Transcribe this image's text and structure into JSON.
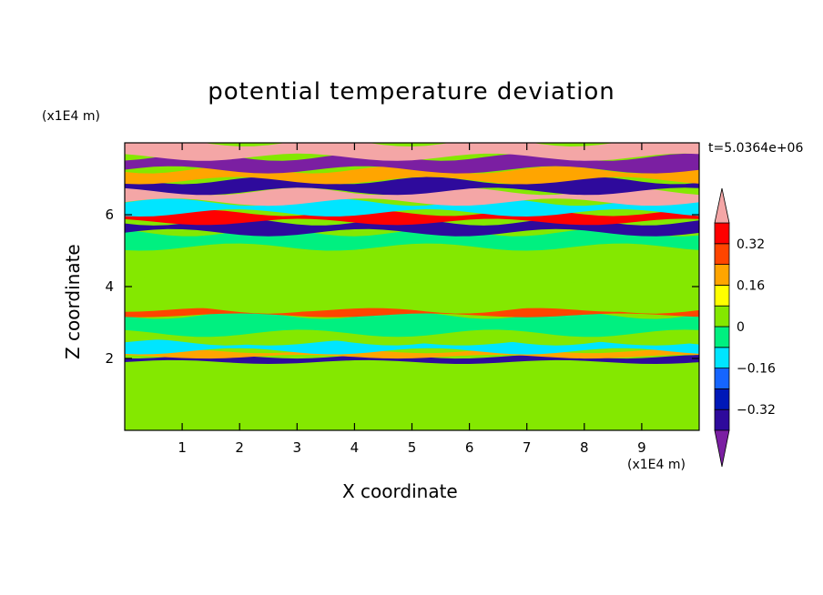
{
  "chart_data": {
    "type": "heatmap",
    "title": "potential temperature deviation",
    "xlabel": "X coordinate",
    "ylabel": "Z coordinate",
    "x_unit": "(x1E4 m)",
    "y_unit": "(x1E4 m)",
    "time_label": "t=5.0364e+06",
    "xlim": [
      0,
      10
    ],
    "ylim": [
      0,
      8
    ],
    "x_ticks": [
      1,
      2,
      3,
      4,
      5,
      6,
      7,
      8,
      9
    ],
    "y_ticks": [
      2,
      4,
      6
    ],
    "x_tick_labels": [
      "1",
      "2",
      "3",
      "4",
      "5",
      "6",
      "7",
      "8",
      "9"
    ],
    "y_tick_labels": [
      "2",
      "4",
      "6"
    ],
    "colorbar": {
      "levels": [
        -0.4,
        -0.32,
        -0.24,
        -0.16,
        -0.08,
        0,
        0.08,
        0.16,
        0.24,
        0.32,
        0.4
      ],
      "colors": [
        "#7b1fa2",
        "#2e0a9c",
        "#0018b8",
        "#1565ff",
        "#00e5ff",
        "#00f080",
        "#84e800",
        "#ffff00",
        "#ffa500",
        "#ff4500",
        "#ff0000",
        "#f4a6a6"
      ],
      "tick_values": [
        -0.32,
        -0.16,
        0,
        0.16,
        0.32
      ],
      "tick_labels": [
        "−0.32",
        "−0.16",
        "0",
        "0.16",
        "0.32"
      ],
      "extend": "both"
    },
    "field": {
      "background_value": 0.04,
      "bands": [
        {
          "z": [
            0.0,
            1.9
          ],
          "value": 0.04
        },
        {
          "z": [
            1.9,
            2.05
          ],
          "value": -0.34
        },
        {
          "z": [
            2.05,
            2.2
          ],
          "value": 0.2
        },
        {
          "z": [
            2.2,
            2.45
          ],
          "value": -0.1
        },
        {
          "z": [
            2.45,
            2.7
          ],
          "value": 0.02
        },
        {
          "z": [
            2.7,
            3.2
          ],
          "value": -0.06
        },
        {
          "z": [
            3.2,
            3.35
          ],
          "value": 0.24
        },
        {
          "z": [
            3.35,
            4.2
          ],
          "value": 0.06
        },
        {
          "z": [
            4.2,
            5.1
          ],
          "value": 0.04
        },
        {
          "z": [
            5.1,
            5.5
          ],
          "value": -0.08
        },
        {
          "z": [
            5.5,
            5.8
          ],
          "value": -0.36
        },
        {
          "z": [
            5.8,
            6.05
          ],
          "value": 0.34
        },
        {
          "z": [
            6.05,
            6.35
          ],
          "value": -0.1
        },
        {
          "z": [
            6.35,
            6.65
          ],
          "value": 0.42
        },
        {
          "z": [
            6.65,
            6.95
          ],
          "value": -0.4
        },
        {
          "z": [
            6.95,
            7.25
          ],
          "value": 0.2
        },
        {
          "z": [
            7.25,
            7.6
          ],
          "value": -0.42
        },
        {
          "z": [
            7.6,
            8.0
          ],
          "value": 0.42
        }
      ]
    }
  }
}
